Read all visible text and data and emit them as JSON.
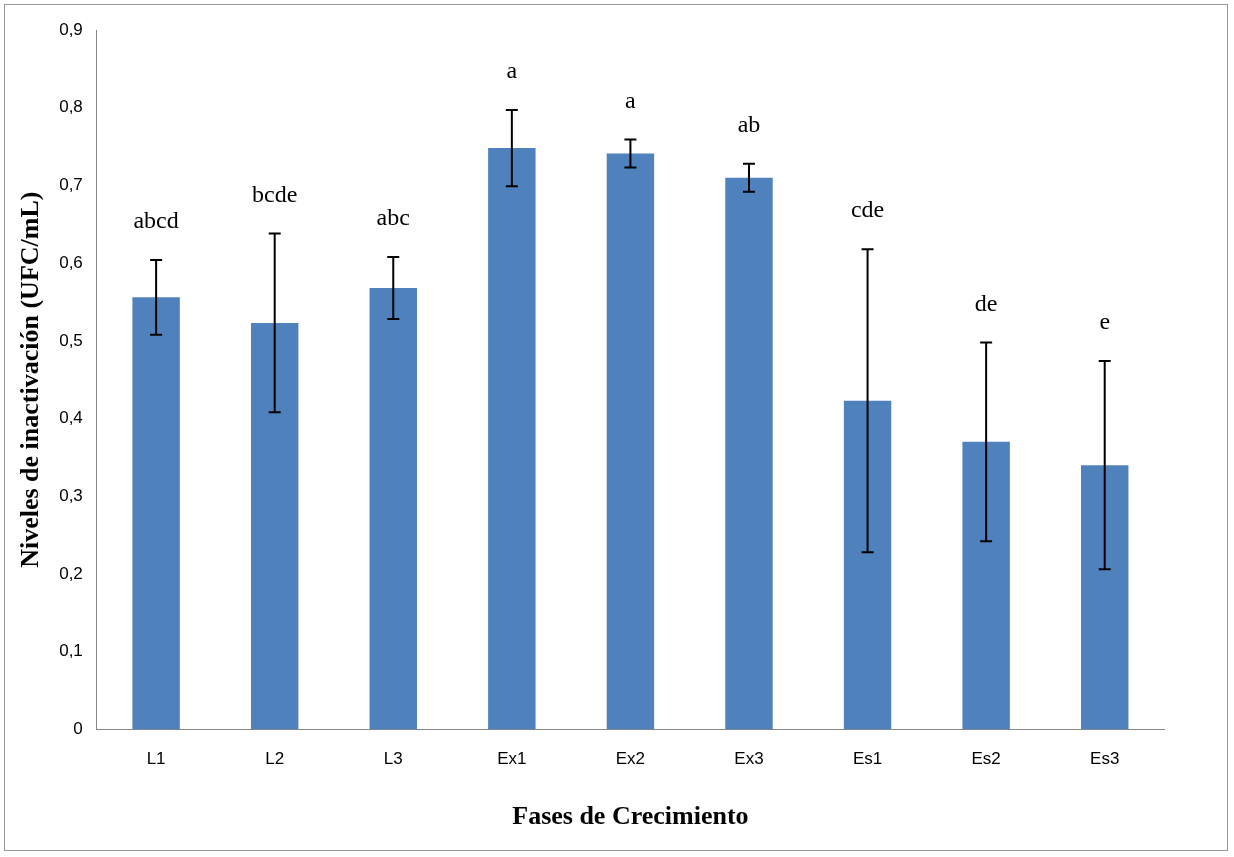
{
  "chart_data": {
    "type": "bar",
    "xlabel": "Fases de Crecimiento",
    "ylabel": "Niveles de inactivación (UFC/mL)",
    "categories": [
      "L1",
      "L2",
      "L3",
      "Ex1",
      "Ex2",
      "Ex3",
      "Es1",
      "Es2",
      "Es3"
    ],
    "values": [
      0.556,
      0.523,
      0.568,
      0.748,
      0.741,
      0.71,
      0.423,
      0.37,
      0.34
    ],
    "errors": [
      0.048,
      0.115,
      0.04,
      0.049,
      0.018,
      0.018,
      0.195,
      0.128,
      0.134
    ],
    "color": "#4f81bd",
    "ylim": [
      0,
      0.9
    ],
    "yticks": [
      {
        "value": 0,
        "label": "0"
      },
      {
        "value": 0.1,
        "label": "0,1"
      },
      {
        "value": 0.2,
        "label": "0,2"
      },
      {
        "value": 0.3,
        "label": "0,3"
      },
      {
        "value": 0.4,
        "label": "0,4"
      },
      {
        "value": 0.5,
        "label": "0,5"
      },
      {
        "value": 0.6,
        "label": "0,6"
      },
      {
        "value": 0.7,
        "label": "0,7"
      },
      {
        "value": 0.8,
        "label": "0,8"
      },
      {
        "value": 0.9,
        "label": "0,9"
      }
    ],
    "grid": false,
    "legend": false,
    "annotations": [
      "abcd",
      "bcde",
      "abc",
      "a",
      "a",
      "ab",
      "cde",
      "de",
      "e"
    ]
  }
}
